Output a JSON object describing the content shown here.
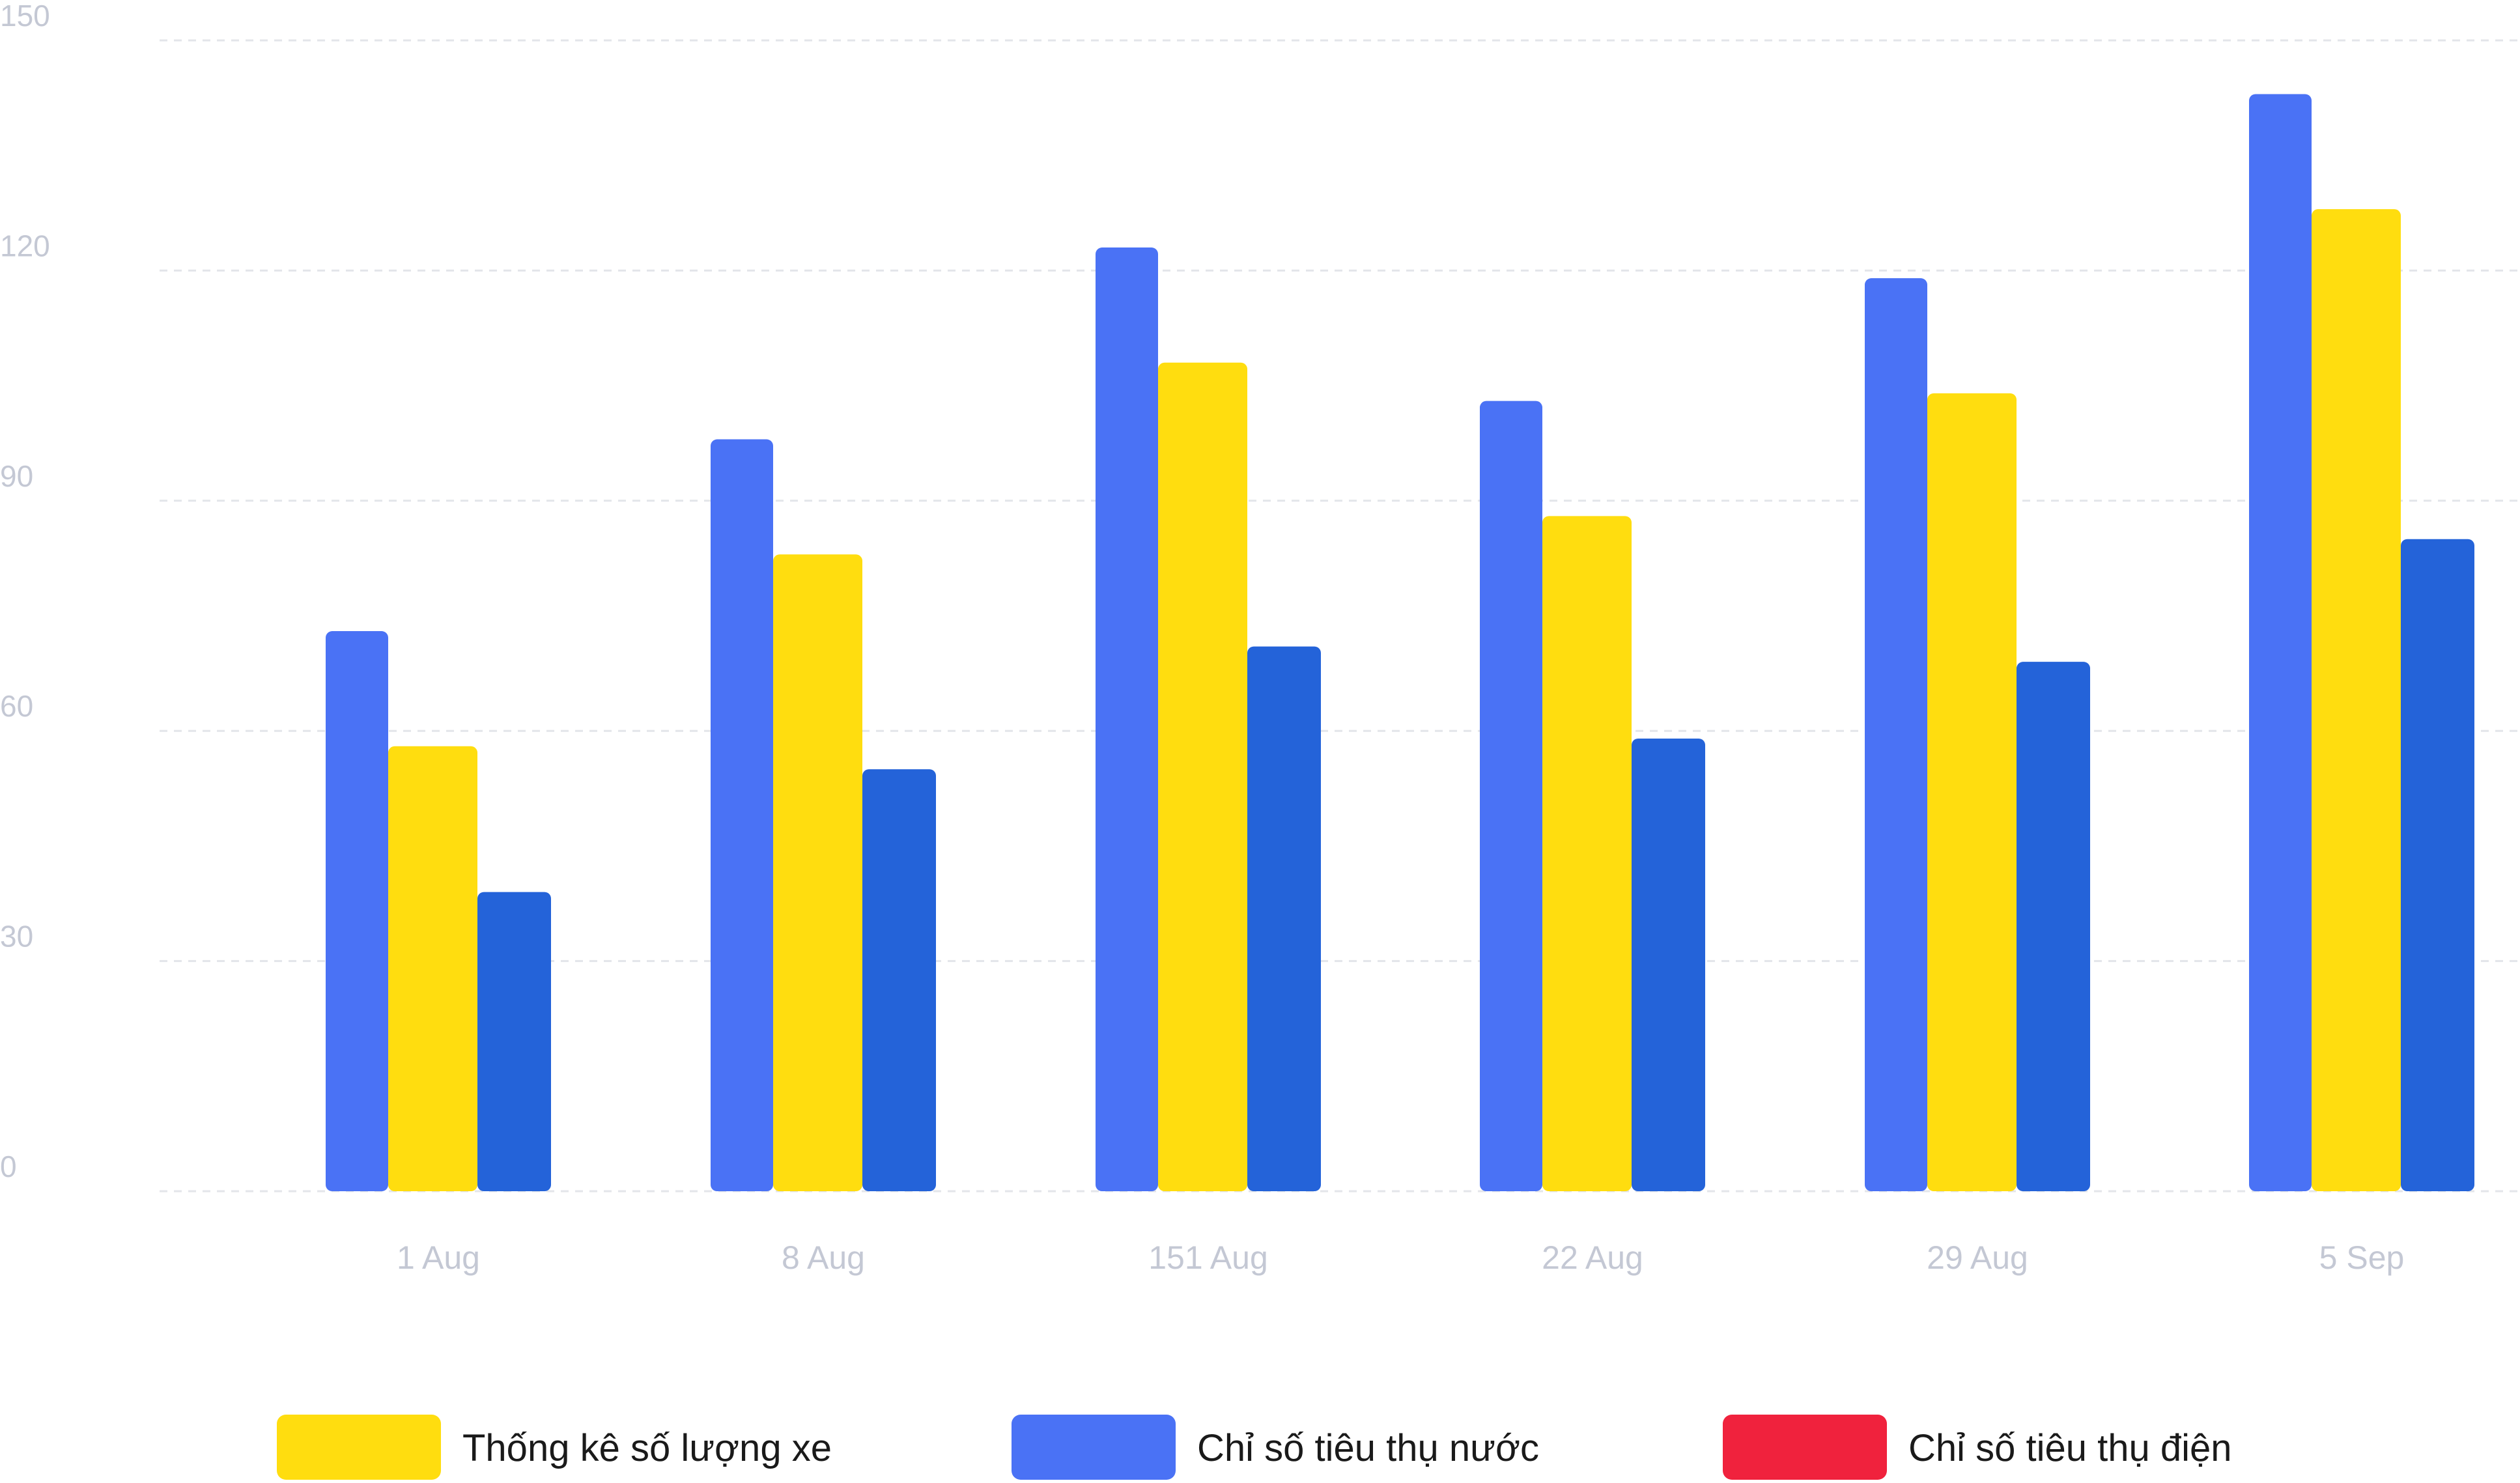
{
  "chart_data": {
    "type": "bar",
    "title": "",
    "xlabel": "",
    "ylabel": "",
    "ylim": [
      0,
      150
    ],
    "y_ticks": [
      "0",
      "30",
      "60",
      "90",
      "120",
      "150"
    ],
    "categories": [
      "1 Aug",
      "8 Aug",
      "151 Aug",
      "22 Aug",
      "29 Aug",
      "5 Sep"
    ],
    "grid": true,
    "legend_position": "bottom",
    "series": [
      {
        "values": [
          73,
          98,
          123,
          103,
          119,
          143
        ],
        "color": "#4A72F5"
      },
      {
        "values": [
          58,
          83,
          108,
          88,
          104,
          128
        ],
        "color": "#FFDD0F"
      },
      {
        "values": [
          39,
          55,
          71,
          59,
          69,
          85
        ],
        "color": "#2463D9"
      }
    ],
    "legend": [
      {
        "label": "Thống kê số lượng xe",
        "color": "#FFDD0F"
      },
      {
        "label": "Chỉ số tiêu thụ nước",
        "color": "#4A72F5"
      },
      {
        "label": "Chỉ số tiêu thụ điện",
        "color": "#F0223D"
      }
    ],
    "tick_color": "#C4C8D4",
    "grid_color": "#E3E5EA",
    "legend_text_color": "#1A1A1A"
  }
}
